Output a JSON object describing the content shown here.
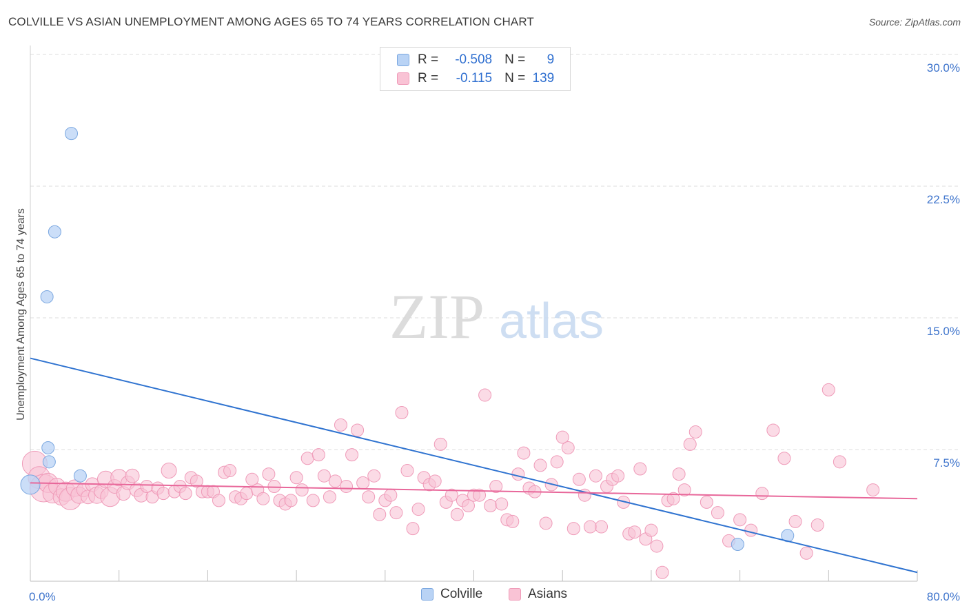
{
  "header": {
    "title": "COLVILLE VS ASIAN UNEMPLOYMENT AMONG AGES 65 TO 74 YEARS CORRELATION CHART",
    "source": "Source: ZipAtlas.com"
  },
  "watermark": {
    "zip": "ZIP",
    "atlas": "atlas"
  },
  "legend": {
    "rows": [
      {
        "r_label": "R =",
        "r_value": "-0.508",
        "n_label": "N =",
        "n_value": "9"
      },
      {
        "r_label": "R =",
        "r_value": "-0.115",
        "n_label": "N =",
        "n_value": "139"
      }
    ]
  },
  "bottom_legend": {
    "colville": "Colville",
    "asians": "Asians"
  },
  "colors": {
    "colville_fill": "#b9d3f5",
    "colville_stroke": "#7aa7e0",
    "colville_line": "#2f73d0",
    "asians_fill": "#f9c3d5",
    "asians_stroke": "#ef9ab8",
    "asians_line": "#e8679a",
    "axis_text": "#3e74cc",
    "grid": "#dcdcdc"
  },
  "chart_data": {
    "type": "scatter",
    "title": "COLVILLE VS ASIAN UNEMPLOYMENT AMONG AGES 65 TO 74 YEARS CORRELATION CHART",
    "xlabel": "",
    "ylabel": "Unemployment Among Ages 65 to 74 years",
    "xlim": [
      0,
      80
    ],
    "ylim": [
      0,
      30
    ],
    "x_tick_labels": [
      "0.0%",
      "80.0%"
    ],
    "y_ticks": [
      7.5,
      15.0,
      22.5,
      30.0
    ],
    "y_tick_labels": [
      "7.5%",
      "15.0%",
      "22.5%",
      "30.0%"
    ],
    "grid": true,
    "legend_position": "top-center",
    "series": [
      {
        "name": "Colville",
        "r": -0.508,
        "n": 9,
        "trend": {
          "x": [
            0,
            80
          ],
          "y": [
            12.7,
            0.5
          ]
        },
        "points": [
          [
            0.0,
            5.5,
            14
          ],
          [
            1.6,
            7.6,
            9
          ],
          [
            3.7,
            25.5,
            9
          ],
          [
            2.2,
            19.9,
            9
          ],
          [
            1.5,
            16.2,
            9
          ],
          [
            1.7,
            6.8,
            9
          ],
          [
            4.5,
            6.0,
            9
          ],
          [
            63.8,
            2.1,
            9
          ],
          [
            68.3,
            2.6,
            9
          ]
        ]
      },
      {
        "name": "Asians",
        "r": -0.115,
        "n": 139,
        "trend": {
          "x": [
            0,
            80
          ],
          "y": [
            5.6,
            4.7
          ]
        },
        "points": [
          [
            0.4,
            6.7,
            18
          ],
          [
            0.8,
            5.9,
            16
          ],
          [
            1.2,
            5.3,
            20
          ],
          [
            1.6,
            5.6,
            14
          ],
          [
            2.0,
            5.0,
            14
          ],
          [
            2.4,
            5.4,
            12
          ],
          [
            2.8,
            4.8,
            12
          ],
          [
            3.2,
            5.1,
            14
          ],
          [
            3.6,
            4.7,
            16
          ],
          [
            4.0,
            5.3,
            12
          ],
          [
            4.4,
            4.9,
            12
          ],
          [
            4.8,
            5.2,
            10
          ],
          [
            5.2,
            4.8,
            10
          ],
          [
            5.6,
            5.5,
            10
          ],
          [
            6.0,
            4.9,
            12
          ],
          [
            6.4,
            5.1,
            10
          ],
          [
            6.8,
            5.8,
            12
          ],
          [
            7.2,
            4.8,
            14
          ],
          [
            7.6,
            5.4,
            10
          ],
          [
            8.0,
            5.9,
            12
          ],
          [
            8.4,
            5.0,
            10
          ],
          [
            8.8,
            5.6,
            10
          ],
          [
            9.2,
            6.0,
            10
          ],
          [
            9.6,
            5.2,
            10
          ],
          [
            10.0,
            4.9,
            10
          ],
          [
            10.5,
            5.4,
            9
          ],
          [
            11.0,
            4.8,
            9
          ],
          [
            11.5,
            5.3,
            9
          ],
          [
            12.0,
            5.0,
            9
          ],
          [
            12.5,
            6.3,
            11
          ],
          [
            13.0,
            5.1,
            9
          ],
          [
            13.5,
            5.4,
            9
          ],
          [
            14.0,
            5.0,
            9
          ],
          [
            14.5,
            5.9,
            9
          ],
          [
            15.0,
            5.7,
            9
          ],
          [
            15.5,
            5.1,
            9
          ],
          [
            16.0,
            5.1,
            9
          ],
          [
            16.5,
            5.1,
            9
          ],
          [
            17.0,
            4.6,
            9
          ],
          [
            17.5,
            6.2,
            9
          ],
          [
            18.0,
            6.3,
            9
          ],
          [
            18.5,
            4.8,
            9
          ],
          [
            19.0,
            4.7,
            9
          ],
          [
            19.5,
            5.0,
            9
          ],
          [
            20.0,
            5.8,
            9
          ],
          [
            20.5,
            5.2,
            9
          ],
          [
            21.0,
            4.7,
            9
          ],
          [
            21.5,
            6.1,
            9
          ],
          [
            22.0,
            5.4,
            9
          ],
          [
            22.5,
            4.6,
            9
          ],
          [
            23.0,
            4.4,
            9
          ],
          [
            23.5,
            4.6,
            9
          ],
          [
            24.0,
            5.9,
            9
          ],
          [
            24.5,
            5.2,
            9
          ],
          [
            25.0,
            7.0,
            9
          ],
          [
            25.5,
            4.6,
            9
          ],
          [
            26.0,
            7.2,
            9
          ],
          [
            26.5,
            6.0,
            9
          ],
          [
            27.0,
            4.8,
            9
          ],
          [
            27.5,
            5.7,
            9
          ],
          [
            28.0,
            8.9,
            9
          ],
          [
            28.5,
            5.4,
            9
          ],
          [
            29.0,
            7.2,
            9
          ],
          [
            29.5,
            8.6,
            9
          ],
          [
            30.0,
            5.6,
            9
          ],
          [
            30.5,
            4.8,
            9
          ],
          [
            31.0,
            6.0,
            9
          ],
          [
            31.5,
            3.8,
            9
          ],
          [
            32.0,
            4.6,
            9
          ],
          [
            32.5,
            4.9,
            9
          ],
          [
            33.0,
            3.9,
            9
          ],
          [
            33.5,
            9.6,
            9
          ],
          [
            34.0,
            6.3,
            9
          ],
          [
            34.5,
            3.0,
            9
          ],
          [
            35.0,
            4.1,
            9
          ],
          [
            35.5,
            5.9,
            9
          ],
          [
            36.0,
            5.5,
            9
          ],
          [
            36.5,
            5.7,
            9
          ],
          [
            37.0,
            7.8,
            9
          ],
          [
            37.5,
            4.5,
            9
          ],
          [
            38.0,
            4.9,
            9
          ],
          [
            38.5,
            3.8,
            9
          ],
          [
            39.0,
            4.6,
            9
          ],
          [
            39.5,
            4.3,
            9
          ],
          [
            40.0,
            4.9,
            9
          ],
          [
            40.5,
            4.9,
            9
          ],
          [
            41.0,
            10.6,
            9
          ],
          [
            41.5,
            4.3,
            9
          ],
          [
            42.0,
            5.4,
            9
          ],
          [
            42.5,
            4.4,
            9
          ],
          [
            43.0,
            3.5,
            9
          ],
          [
            43.5,
            3.4,
            9
          ],
          [
            44.0,
            6.1,
            9
          ],
          [
            44.5,
            7.3,
            9
          ],
          [
            45.0,
            5.3,
            9
          ],
          [
            45.5,
            5.1,
            9
          ],
          [
            46.0,
            6.6,
            9
          ],
          [
            46.5,
            3.3,
            9
          ],
          [
            47.0,
            5.5,
            9
          ],
          [
            47.5,
            6.8,
            9
          ],
          [
            48.0,
            8.2,
            9
          ],
          [
            48.5,
            7.6,
            9
          ],
          [
            49.0,
            3.0,
            9
          ],
          [
            49.5,
            5.8,
            9
          ],
          [
            50.0,
            4.9,
            9
          ],
          [
            50.5,
            3.1,
            9
          ],
          [
            51.0,
            6.0,
            9
          ],
          [
            51.5,
            3.1,
            9
          ],
          [
            52.0,
            5.4,
            9
          ],
          [
            52.5,
            5.8,
            9
          ],
          [
            53.0,
            6.0,
            9
          ],
          [
            53.5,
            4.5,
            9
          ],
          [
            54.0,
            2.7,
            9
          ],
          [
            54.5,
            2.8,
            9
          ],
          [
            55.0,
            6.4,
            9
          ],
          [
            55.5,
            2.4,
            9
          ],
          [
            56.0,
            2.9,
            9
          ],
          [
            56.5,
            2.0,
            9
          ],
          [
            57.0,
            0.5,
            9
          ],
          [
            57.5,
            4.6,
            9
          ],
          [
            58.0,
            4.7,
            9
          ],
          [
            58.5,
            6.1,
            9
          ],
          [
            59.0,
            5.2,
            9
          ],
          [
            59.5,
            7.8,
            9
          ],
          [
            60.0,
            8.5,
            9
          ],
          [
            61.0,
            4.5,
            9
          ],
          [
            62.0,
            3.9,
            9
          ],
          [
            63.0,
            2.3,
            9
          ],
          [
            64.0,
            3.5,
            9
          ],
          [
            65.0,
            2.9,
            9
          ],
          [
            66.0,
            5.0,
            9
          ],
          [
            67.0,
            8.6,
            9
          ],
          [
            68.0,
            7.0,
            9
          ],
          [
            69.0,
            3.4,
            9
          ],
          [
            70.0,
            1.6,
            9
          ],
          [
            71.0,
            3.2,
            9
          ],
          [
            72.0,
            10.9,
            9
          ],
          [
            73.0,
            6.8,
            9
          ],
          [
            76.0,
            5.2,
            9
          ]
        ]
      }
    ]
  }
}
